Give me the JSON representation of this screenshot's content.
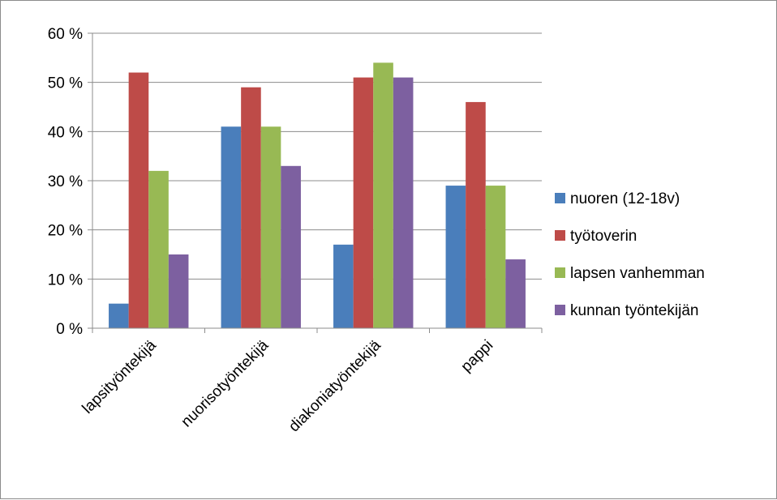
{
  "chart_data": {
    "type": "bar",
    "categories": [
      "lapsityöntekijä",
      "nuorisotyöntekijä",
      "diakoniatyöntekijä",
      "pappi"
    ],
    "series": [
      {
        "name": "nuoren (12-18v)",
        "color": "#4a7ebb",
        "values": [
          5,
          41,
          17,
          29
        ]
      },
      {
        "name": "työtoverin",
        "color": "#be4b48",
        "values": [
          52,
          49,
          51,
          46
        ]
      },
      {
        "name": "lapsen vanhemman",
        "color": "#98b954",
        "values": [
          32,
          41,
          54,
          29
        ]
      },
      {
        "name": "kunnan työntekijän",
        "color": "#7d60a0",
        "values": [
          15,
          33,
          51,
          14
        ]
      }
    ],
    "ylim": [
      0,
      60
    ],
    "yticks": [
      0,
      10,
      20,
      30,
      40,
      50,
      60
    ],
    "ytick_labels": [
      "0 %",
      "10 %",
      "20 %",
      "30 %",
      "40 %",
      "50 %",
      "60 %"
    ],
    "grid": true,
    "legend": "right"
  }
}
